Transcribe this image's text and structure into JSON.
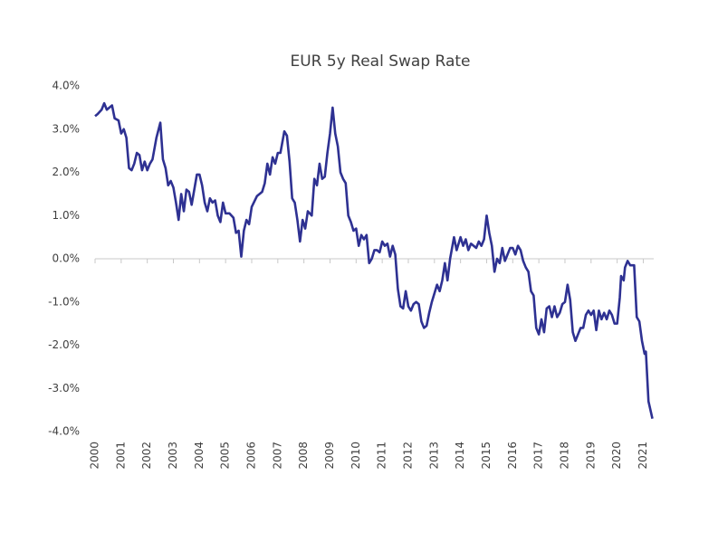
{
  "chart_data": {
    "type": "line",
    "title": "EUR 5y Real Swap Rate",
    "x": [
      2000.0,
      2000.1,
      2000.25,
      2000.35,
      2000.45,
      2000.55,
      2000.65,
      2000.75,
      2000.9,
      2001.0,
      2001.1,
      2001.2,
      2001.3,
      2001.4,
      2001.5,
      2001.6,
      2001.7,
      2001.8,
      2001.9,
      2002.0,
      2002.1,
      2002.2,
      2002.35,
      2002.5,
      2002.6,
      2002.7,
      2002.8,
      2002.9,
      2003.0,
      2003.1,
      2003.2,
      2003.3,
      2003.4,
      2003.5,
      2003.6,
      2003.7,
      2003.8,
      2003.9,
      2004.0,
      2004.1,
      2004.2,
      2004.3,
      2004.4,
      2004.5,
      2004.6,
      2004.7,
      2004.8,
      2004.9,
      2005.0,
      2005.15,
      2005.3,
      2005.4,
      2005.5,
      2005.6,
      2005.7,
      2005.8,
      2005.9,
      2006.0,
      2006.2,
      2006.4,
      2006.5,
      2006.6,
      2006.7,
      2006.8,
      2006.9,
      2007.0,
      2007.1,
      2007.25,
      2007.35,
      2007.45,
      2007.55,
      2007.65,
      2007.75,
      2007.85,
      2007.95,
      2008.05,
      2008.15,
      2008.3,
      2008.4,
      2008.5,
      2008.6,
      2008.7,
      2008.8,
      2008.9,
      2009.0,
      2009.1,
      2009.2,
      2009.3,
      2009.4,
      2009.5,
      2009.6,
      2009.7,
      2009.8,
      2009.9,
      2010.0,
      2010.1,
      2010.2,
      2010.3,
      2010.4,
      2010.5,
      2010.6,
      2010.7,
      2010.8,
      2010.9,
      2011.0,
      2011.1,
      2011.2,
      2011.3,
      2011.4,
      2011.5,
      2011.6,
      2011.7,
      2011.8,
      2011.9,
      2012.0,
      2012.1,
      2012.2,
      2012.3,
      2012.4,
      2012.5,
      2012.6,
      2012.7,
      2012.8,
      2012.9,
      2013.0,
      2013.1,
      2013.2,
      2013.3,
      2013.4,
      2013.5,
      2013.6,
      2013.75,
      2013.85,
      2014.0,
      2014.1,
      2014.2,
      2014.3,
      2014.4,
      2014.5,
      2014.6,
      2014.7,
      2014.8,
      2014.9,
      2015.0,
      2015.1,
      2015.2,
      2015.3,
      2015.4,
      2015.5,
      2015.6,
      2015.7,
      2015.8,
      2015.9,
      2016.0,
      2016.1,
      2016.2,
      2016.3,
      2016.4,
      2016.5,
      2016.6,
      2016.7,
      2016.8,
      2016.9,
      2017.0,
      2017.1,
      2017.2,
      2017.3,
      2017.4,
      2017.5,
      2017.6,
      2017.7,
      2017.8,
      2017.9,
      2018.0,
      2018.1,
      2018.2,
      2018.3,
      2018.4,
      2018.5,
      2018.6,
      2018.7,
      2018.8,
      2018.9,
      2019.0,
      2019.1,
      2019.2,
      2019.3,
      2019.4,
      2019.5,
      2019.6,
      2019.7,
      2019.8,
      2019.9,
      2020.0,
      2020.1,
      2020.15,
      2020.25,
      2020.3,
      2020.4,
      2020.5,
      2020.65,
      2020.75,
      2020.85,
      2020.95,
      2021.05,
      2021.1,
      2021.2,
      2021.35
    ],
    "series": [
      {
        "color": "#2e3192",
        "values": [
          3.3,
          3.35,
          3.45,
          3.6,
          3.45,
          3.5,
          3.55,
          3.25,
          3.2,
          2.9,
          3.0,
          2.8,
          2.1,
          2.05,
          2.2,
          2.45,
          2.4,
          2.05,
          2.25,
          2.05,
          2.2,
          2.3,
          2.8,
          3.15,
          2.3,
          2.1,
          1.7,
          1.8,
          1.65,
          1.3,
          0.9,
          1.5,
          1.1,
          1.6,
          1.55,
          1.25,
          1.6,
          1.95,
          1.95,
          1.7,
          1.3,
          1.1,
          1.4,
          1.3,
          1.35,
          1.0,
          0.85,
          1.3,
          1.05,
          1.05,
          0.95,
          0.6,
          0.65,
          0.05,
          0.65,
          0.9,
          0.8,
          1.2,
          1.45,
          1.55,
          1.75,
          2.2,
          1.95,
          2.35,
          2.2,
          2.45,
          2.45,
          2.95,
          2.85,
          2.25,
          1.4,
          1.3,
          0.9,
          0.4,
          0.9,
          0.7,
          1.1,
          1.0,
          1.85,
          1.7,
          2.2,
          1.85,
          1.9,
          2.45,
          2.9,
          3.5,
          2.9,
          2.6,
          2.0,
          1.85,
          1.75,
          1.0,
          0.85,
          0.65,
          0.7,
          0.3,
          0.55,
          0.45,
          0.55,
          -0.1,
          0.0,
          0.2,
          0.2,
          0.15,
          0.4,
          0.3,
          0.35,
          0.05,
          0.3,
          0.1,
          -0.7,
          -1.1,
          -1.15,
          -0.75,
          -1.1,
          -1.2,
          -1.05,
          -1.0,
          -1.05,
          -1.45,
          -1.6,
          -1.55,
          -1.25,
          -1.0,
          -0.8,
          -0.6,
          -0.75,
          -0.5,
          -0.1,
          -0.5,
          0.0,
          0.5,
          0.2,
          0.5,
          0.3,
          0.45,
          0.2,
          0.35,
          0.3,
          0.25,
          0.4,
          0.3,
          0.45,
          1.0,
          0.6,
          0.3,
          -0.3,
          0.0,
          -0.1,
          0.25,
          -0.05,
          0.1,
          0.25,
          0.25,
          0.1,
          0.3,
          0.2,
          -0.05,
          -0.2,
          -0.3,
          -0.75,
          -0.85,
          -1.6,
          -1.75,
          -1.4,
          -1.7,
          -1.15,
          -1.1,
          -1.35,
          -1.1,
          -1.35,
          -1.25,
          -1.05,
          -1.0,
          -0.6,
          -0.95,
          -1.7,
          -1.9,
          -1.75,
          -1.6,
          -1.6,
          -1.3,
          -1.2,
          -1.3,
          -1.2,
          -1.65,
          -1.2,
          -1.4,
          -1.25,
          -1.4,
          -1.2,
          -1.3,
          -1.5,
          -1.5,
          -0.9,
          -0.4,
          -0.5,
          -0.2,
          -0.05,
          -0.15,
          -0.15,
          -1.35,
          -1.45,
          -1.9,
          -2.2,
          -2.15,
          -3.3,
          -3.7
        ]
      }
    ],
    "xlim": [
      2000,
      2021.4
    ],
    "xticks": [
      2000,
      2001,
      2002,
      2003,
      2004,
      2005,
      2006,
      2007,
      2008,
      2009,
      2010,
      2011,
      2012,
      2013,
      2014,
      2015,
      2016,
      2017,
      2018,
      2019,
      2020,
      2021
    ],
    "ylim": [
      -4,
      4
    ],
    "yticks": [
      {
        "value": 4,
        "label": "4.0%"
      },
      {
        "value": 3,
        "label": "3.0%"
      },
      {
        "value": 2,
        "label": "2.0%"
      },
      {
        "value": 1,
        "label": "1.0%"
      },
      {
        "value": 0,
        "label": "0.0%"
      },
      {
        "value": -1,
        "label": "-1.0%"
      },
      {
        "value": -2,
        "label": "-2.0%"
      },
      {
        "value": -3,
        "label": "-3.0%"
      },
      {
        "value": -4,
        "label": "-4.0%"
      }
    ],
    "grid": false
  }
}
